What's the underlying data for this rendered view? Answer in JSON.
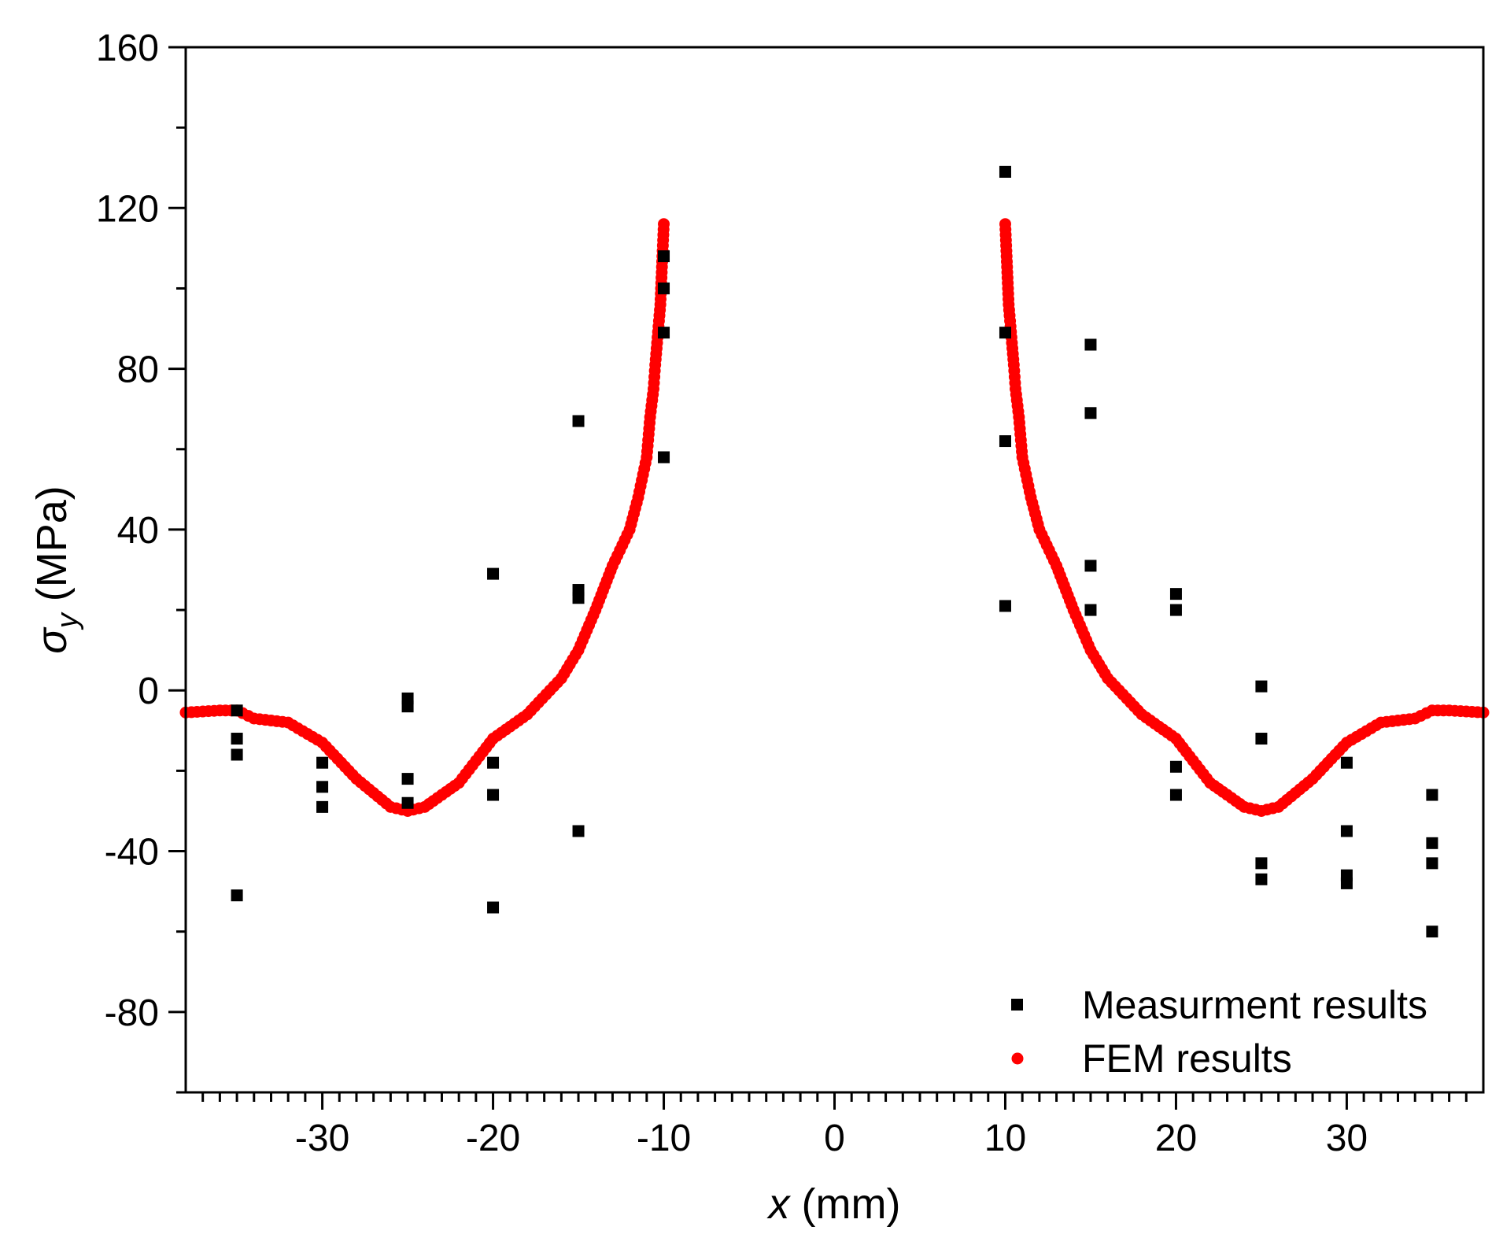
{
  "chart_data": {
    "type": "scatter",
    "title": "",
    "xlabel_var": "x",
    "xlabel_unit": " (mm)",
    "ylabel_sym": "σ",
    "ylabel_sub": "y",
    "ylabel_unit": " (MPa)",
    "xlim": [
      -38,
      38
    ],
    "ylim": [
      -100,
      160
    ],
    "xticks": [
      -30,
      -20,
      -10,
      0,
      10,
      20,
      30
    ],
    "xtick_labels": [
      "-30",
      "-20",
      "-10",
      "0",
      "10",
      "20",
      "30"
    ],
    "yticks": [
      -80,
      -40,
      0,
      40,
      80,
      120,
      160
    ],
    "ytick_labels": [
      "-80",
      "-40",
      "0",
      "40",
      "80",
      "120",
      "160"
    ],
    "grid": false,
    "legend_position": "bottom-right",
    "series": [
      {
        "name": "Measurment results",
        "marker": "square",
        "color": "#000000",
        "points": [
          [
            -35,
            -5
          ],
          [
            -35,
            -12
          ],
          [
            -35,
            -16
          ],
          [
            -35,
            -51
          ],
          [
            -30,
            -18
          ],
          [
            -30,
            -24
          ],
          [
            -30,
            -29
          ],
          [
            -25,
            -2
          ],
          [
            -25,
            -4
          ],
          [
            -25,
            -22
          ],
          [
            -25,
            -28
          ],
          [
            -20,
            29
          ],
          [
            -20,
            -18
          ],
          [
            -20,
            -26
          ],
          [
            -20,
            -54
          ],
          [
            -15,
            67
          ],
          [
            -15,
            25
          ],
          [
            -15,
            23
          ],
          [
            -15,
            -35
          ],
          [
            -10,
            108
          ],
          [
            -10,
            100
          ],
          [
            -10,
            89
          ],
          [
            -10,
            58
          ],
          [
            10,
            129
          ],
          [
            10,
            89
          ],
          [
            10,
            62
          ],
          [
            10,
            21
          ],
          [
            15,
            86
          ],
          [
            15,
            69
          ],
          [
            15,
            31
          ],
          [
            15,
            20
          ],
          [
            20,
            24
          ],
          [
            20,
            20
          ],
          [
            20,
            -19
          ],
          [
            20,
            -26
          ],
          [
            25,
            1
          ],
          [
            25,
            -12
          ],
          [
            25,
            -43
          ],
          [
            25,
            -47
          ],
          [
            30,
            -18
          ],
          [
            30,
            -35
          ],
          [
            30,
            -46
          ],
          [
            30,
            -48
          ],
          [
            35,
            -26
          ],
          [
            35,
            -38
          ],
          [
            35,
            -43
          ],
          [
            35,
            -60
          ]
        ]
      },
      {
        "name": "FEM results",
        "marker": "circle",
        "color": "#ff0000",
        "curve_left": [
          [
            -38,
            -5.5
          ],
          [
            -36,
            -5
          ],
          [
            -35,
            -5
          ],
          [
            -34,
            -7
          ],
          [
            -32,
            -8
          ],
          [
            -30,
            -13
          ],
          [
            -28,
            -22
          ],
          [
            -26,
            -29
          ],
          [
            -25,
            -30
          ],
          [
            -24,
            -29
          ],
          [
            -22,
            -23
          ],
          [
            -20,
            -12
          ],
          [
            -18,
            -6
          ],
          [
            -16,
            3
          ],
          [
            -15,
            10
          ],
          [
            -14,
            20
          ],
          [
            -13,
            31
          ],
          [
            -12,
            40
          ],
          [
            -11.5,
            48
          ],
          [
            -11,
            58
          ],
          [
            -10.8,
            68
          ],
          [
            -10.6,
            75
          ],
          [
            -10.5,
            81
          ],
          [
            -10.2,
            96
          ],
          [
            -10,
            116
          ]
        ],
        "curve_right": [
          [
            10,
            116
          ],
          [
            10.2,
            96
          ],
          [
            10.5,
            81
          ],
          [
            10.6,
            75
          ],
          [
            10.8,
            68
          ],
          [
            11,
            58
          ],
          [
            11.5,
            48
          ],
          [
            12,
            40
          ],
          [
            13,
            31
          ],
          [
            14,
            20
          ],
          [
            15,
            10
          ],
          [
            16,
            3
          ],
          [
            18,
            -6
          ],
          [
            20,
            -12
          ],
          [
            22,
            -23
          ],
          [
            24,
            -29
          ],
          [
            25,
            -30
          ],
          [
            26,
            -29
          ],
          [
            28,
            -22
          ],
          [
            30,
            -13
          ],
          [
            32,
            -8
          ],
          [
            34,
            -7
          ],
          [
            35,
            -5
          ],
          [
            36,
            -5
          ],
          [
            38,
            -5.5
          ]
        ]
      }
    ]
  }
}
